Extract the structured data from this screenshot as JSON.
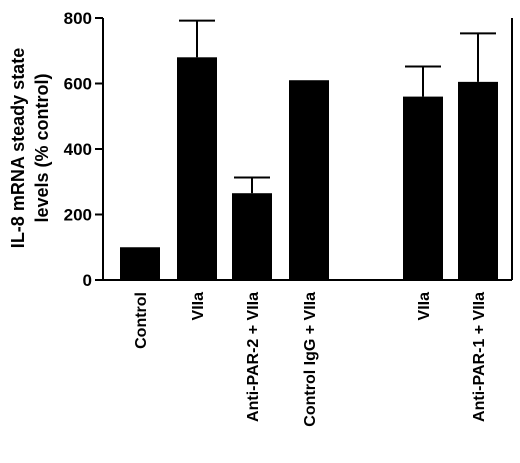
{
  "chart_data": {
    "type": "bar",
    "ylabel_lines": [
      "IL-8 mRNA steady state",
      "levels (% control)"
    ],
    "xlabel": "",
    "ylim": [
      0,
      800
    ],
    "yticks": [
      "0",
      "200",
      "400",
      "600",
      "800"
    ],
    "grid": false,
    "legend": "none",
    "bar_color": "#000000",
    "categories": [
      "Control",
      "VIIa",
      "Anti-PAR-2 + VIIa",
      "Control IgG + VIIa",
      "VIIa",
      "Anti-PAR-1 + VIIa"
    ],
    "values": [
      100,
      680,
      265,
      610,
      560,
      605
    ],
    "error_upper": [
      0,
      112,
      48,
      0,
      92,
      148
    ]
  }
}
